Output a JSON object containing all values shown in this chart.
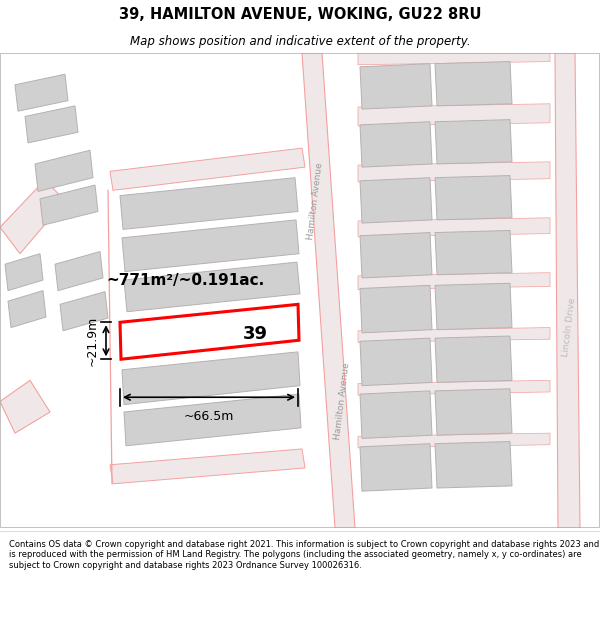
{
  "title": "39, HAMILTON AVENUE, WOKING, GU22 8RU",
  "subtitle": "Map shows position and indicative extent of the property.",
  "footer": "Contains OS data © Crown copyright and database right 2021. This information is subject to Crown copyright and database rights 2023 and is reproduced with the permission of HM Land Registry. The polygons (including the associated geometry, namely x, y co-ordinates) are subject to Crown copyright and database rights 2023 Ordnance Survey 100026316.",
  "area_text": "~771m²/~0.191ac.",
  "width_text": "~66.5m",
  "height_text": "~21.9m",
  "label_39": "39",
  "hamilton_avenue": "Hamilton Avenue",
  "lincoln_drive": "Lincoln Drive",
  "street_color": "#f5a0a0",
  "building_fill": "#d0d0d0",
  "building_edge": "#b8b0b0",
  "highlight_color": "#ff0000",
  "road_fill": "#f0e8e8"
}
